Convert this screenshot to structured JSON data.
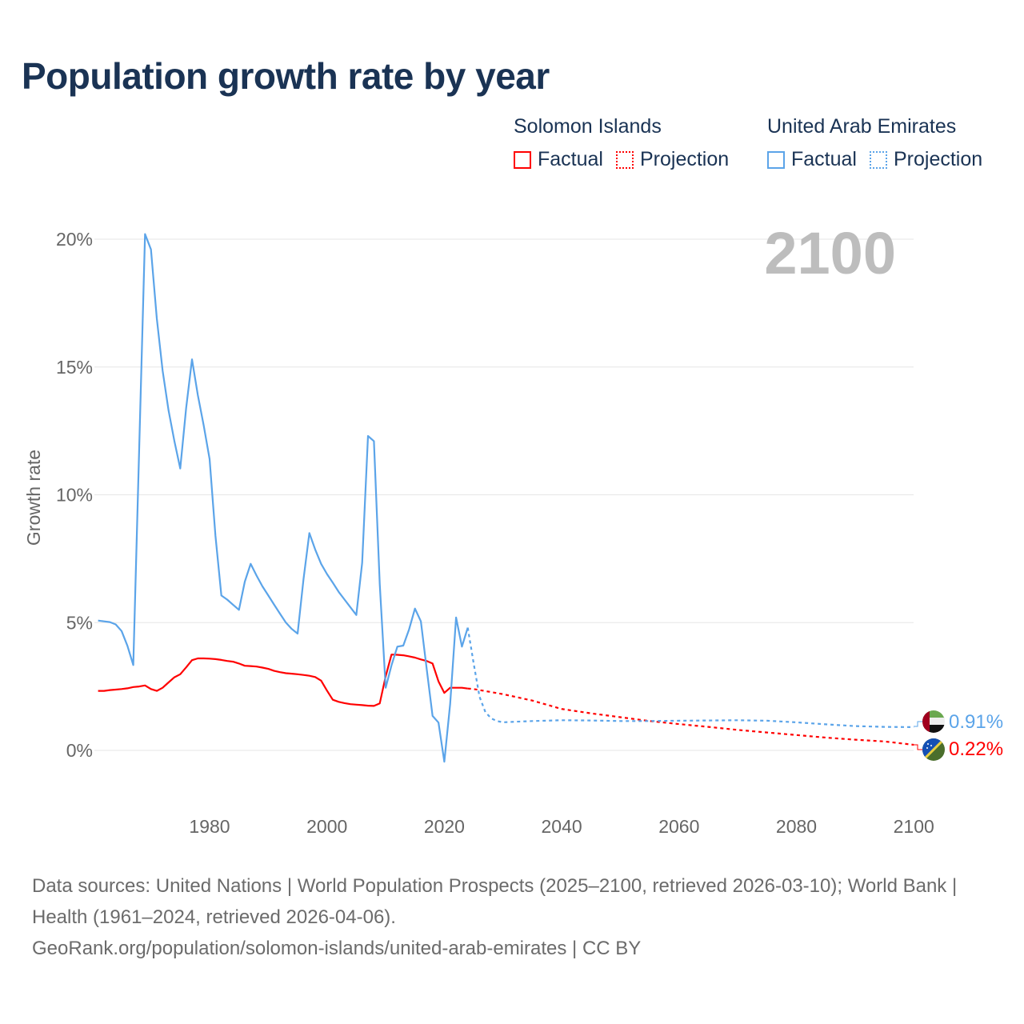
{
  "title": "Population growth rate by year",
  "legend": {
    "groups": [
      {
        "name": "Solomon Islands",
        "color": "#ff0000",
        "factual_label": "Factual",
        "projection_label": "Projection"
      },
      {
        "name": "United Arab Emirates",
        "color": "#5ba4e9",
        "factual_label": "Factual",
        "projection_label": "Projection"
      }
    ]
  },
  "year_display": "2100",
  "end_labels": {
    "uae": "0.91%",
    "solomon": "0.22%"
  },
  "footer": {
    "sources": "Data sources: United Nations | World Population Prospects (2025–2100, retrieved 2026-03-10); World Bank | Health (1961–2024, retrieved 2026-04-06).",
    "link": "GeoRank.org/population/solomon-islands/united-arab-emirates | CC BY"
  },
  "chart_data": {
    "type": "line",
    "title": "Population growth rate by year",
    "xlabel": "",
    "ylabel": "Growth rate",
    "xlim": [
      1961,
      2100
    ],
    "ylim": [
      -1,
      21
    ],
    "x_ticks": [
      1980,
      2000,
      2020,
      2040,
      2060,
      2080,
      2100
    ],
    "x_tick_labels": [
      "1980",
      "2000",
      "2020",
      "2040",
      "2060",
      "2080",
      "2100"
    ],
    "y_ticks": [
      0,
      5,
      10,
      15,
      20
    ],
    "y_tick_labels": [
      "0%",
      "5%",
      "10%",
      "15%",
      "20%"
    ],
    "grid": true,
    "legend_position": "top-right",
    "series": [
      {
        "name": "Solomon Islands – Factual",
        "color": "#ff0000",
        "style": "solid",
        "x": [
          1961,
          1962,
          1963,
          1964,
          1965,
          1966,
          1967,
          1968,
          1969,
          1970,
          1971,
          1972,
          1973,
          1974,
          1975,
          1976,
          1977,
          1978,
          1979,
          1980,
          1981,
          1982,
          1983,
          1984,
          1985,
          1986,
          1987,
          1988,
          1989,
          1990,
          1991,
          1992,
          1993,
          1994,
          1995,
          1996,
          1997,
          1998,
          1999,
          2000,
          2001,
          2002,
          2003,
          2004,
          2005,
          2006,
          2007,
          2008,
          2009,
          2010,
          2011,
          2012,
          2013,
          2014,
          2015,
          2016,
          2017,
          2018,
          2019,
          2020,
          2021,
          2022,
          2023,
          2024
        ],
        "values": [
          2.33,
          2.33,
          2.36,
          2.38,
          2.4,
          2.43,
          2.48,
          2.5,
          2.54,
          2.4,
          2.33,
          2.45,
          2.66,
          2.86,
          2.98,
          3.25,
          3.53,
          3.6,
          3.6,
          3.59,
          3.57,
          3.54,
          3.5,
          3.47,
          3.4,
          3.31,
          3.3,
          3.28,
          3.24,
          3.19,
          3.11,
          3.06,
          3.02,
          3.0,
          2.98,
          2.95,
          2.92,
          2.87,
          2.73,
          2.34,
          1.98,
          1.9,
          1.85,
          1.81,
          1.79,
          1.77,
          1.75,
          1.74,
          1.84,
          2.9,
          3.75,
          3.74,
          3.72,
          3.68,
          3.63,
          3.56,
          3.5,
          3.4,
          2.7,
          2.25,
          2.45,
          2.45,
          2.45,
          2.42
        ]
      },
      {
        "name": "Solomon Islands – Projection",
        "color": "#ff0000",
        "style": "dotted",
        "x": [
          2024,
          2025,
          2030,
          2035,
          2040,
          2045,
          2050,
          2055,
          2060,
          2065,
          2070,
          2075,
          2080,
          2085,
          2090,
          2095,
          2100
        ],
        "values": [
          2.42,
          2.4,
          2.2,
          1.95,
          1.62,
          1.45,
          1.3,
          1.15,
          1.03,
          0.92,
          0.8,
          0.7,
          0.6,
          0.5,
          0.42,
          0.35,
          0.22
        ]
      },
      {
        "name": "United Arab Emirates – Factual",
        "color": "#5ba4e9",
        "style": "solid",
        "x": [
          1961,
          1962,
          1963,
          1964,
          1965,
          1966,
          1967,
          1969,
          1970,
          1971,
          1972,
          1973,
          1974,
          1975,
          1976,
          1977,
          1978,
          1979,
          1980,
          1981,
          1982,
          1983,
          1984,
          1985,
          1986,
          1987,
          1988,
          1989,
          1990,
          1991,
          1992,
          1993,
          1994,
          1995,
          1996,
          1997,
          1998,
          1999,
          2000,
          2001,
          2002,
          2003,
          2004,
          2005,
          2006,
          2007,
          2008,
          2009,
          2010,
          2011,
          2012,
          2013,
          2014,
          2015,
          2016,
          2017,
          2018,
          2019,
          2020,
          2021,
          2022,
          2023,
          2024
        ],
        "values": [
          5.08,
          5.05,
          5.02,
          4.93,
          4.67,
          4.09,
          3.34,
          20.2,
          19.6,
          16.9,
          14.85,
          13.3,
          12.1,
          11.03,
          13.4,
          15.3,
          13.9,
          12.7,
          11.4,
          8.4,
          6.06,
          5.9,
          5.7,
          5.5,
          6.6,
          7.3,
          6.84,
          6.42,
          6.06,
          5.7,
          5.35,
          5.0,
          4.75,
          4.57,
          6.7,
          8.5,
          7.86,
          7.3,
          6.9,
          6.56,
          6.2,
          5.9,
          5.6,
          5.3,
          7.34,
          12.3,
          12.1,
          6.5,
          2.45,
          3.33,
          4.06,
          4.1,
          4.74,
          5.55,
          5.05,
          3.18,
          1.35,
          1.09,
          -0.44,
          1.82,
          5.2,
          4.06,
          4.8
        ]
      },
      {
        "name": "United Arab Emirates – Projection",
        "color": "#5ba4e9",
        "style": "dotted",
        "x": [
          2024,
          2025,
          2026,
          2027,
          2028,
          2029,
          2030,
          2032,
          2035,
          2040,
          2045,
          2050,
          2055,
          2060,
          2065,
          2070,
          2075,
          2080,
          2085,
          2090,
          2095,
          2100
        ],
        "values": [
          4.8,
          3.4,
          2.1,
          1.5,
          1.25,
          1.15,
          1.1,
          1.12,
          1.15,
          1.18,
          1.17,
          1.15,
          1.15,
          1.16,
          1.17,
          1.18,
          1.16,
          1.1,
          1.02,
          0.95,
          0.92,
          0.91
        ]
      }
    ]
  }
}
